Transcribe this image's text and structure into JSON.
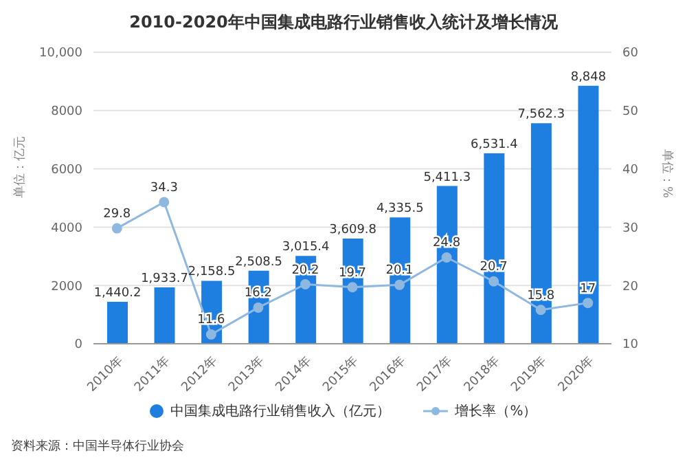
{
  "chart_data": {
    "type": "bar",
    "title": "2010-2020年中国集成电路行业销售收入统计及增长情况",
    "categories": [
      "2010年",
      "2011年",
      "2012年",
      "2013年",
      "2014年",
      "2015年",
      "2016年",
      "2017年",
      "2018年",
      "2019年",
      "2020年"
    ],
    "series": [
      {
        "name": "中国集成电路行业销售收入（亿元）",
        "color": "#1e7fe0",
        "values": [
          1440.2,
          1933.7,
          2158.5,
          2508.5,
          3015.4,
          3609.8,
          4335.5,
          5411.3,
          6531.4,
          7562.3,
          8848
        ],
        "value_labels": [
          "1,440.2",
          "1,933.7",
          "2,158.5",
          "2,508.5",
          "3,015.4",
          "3,609.8",
          "4,335.5",
          "5,411.3",
          "6,531.4",
          "7,562.3",
          "8,848"
        ]
      },
      {
        "name": "增长率（%）",
        "type": "line",
        "axis": "y2",
        "color": "#8fb8e0",
        "marker": "circle",
        "values": [
          29.8,
          34.3,
          11.6,
          16.2,
          20.2,
          19.7,
          20.1,
          24.8,
          20.7,
          15.8,
          17
        ],
        "value_labels": [
          "29.8",
          "34.3",
          "11.6",
          "16.2",
          "20.2",
          "19.7",
          "20.1",
          "24.8",
          "20.7",
          "15.8",
          "17"
        ]
      }
    ],
    "ylabel": "单位：亿元",
    "y2label": "单位：%",
    "ylim": [
      0,
      10000
    ],
    "yticks": [
      0,
      2000,
      4000,
      6000,
      8000,
      {
        "value": 10000,
        "label": "10,000"
      }
    ],
    "y2lim": [
      10,
      60
    ],
    "y2ticks": [
      10,
      20,
      30,
      40,
      50,
      60
    ],
    "grid": "y",
    "legend": "bottom",
    "annotations": [
      "资料来源：中国半导体行业协会"
    ]
  }
}
